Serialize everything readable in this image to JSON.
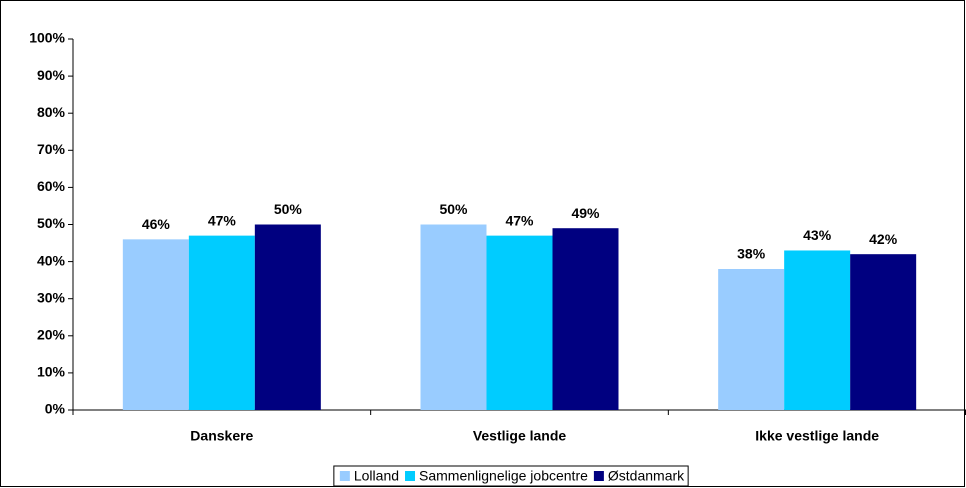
{
  "chart_data": {
    "type": "bar",
    "categories": [
      "Danskere",
      "Vestlige lande",
      "Ikke vestlige lande"
    ],
    "series": [
      {
        "name": "Lolland",
        "color": "#99ccff",
        "values": [
          46,
          50,
          38
        ],
        "value_labels": [
          "46%",
          "50%",
          "38%"
        ]
      },
      {
        "name": "Sammenlignelige jobcentre",
        "color": "#00ccff",
        "values": [
          47,
          47,
          43
        ],
        "value_labels": [
          "47%",
          "47%",
          "43%"
        ]
      },
      {
        "name": "Østdanmark",
        "color": "#000080",
        "values": [
          50,
          49,
          42
        ],
        "value_labels": [
          "50%",
          "49%",
          "42%"
        ]
      }
    ],
    "ylim": [
      0,
      100
    ],
    "yticks": [
      {
        "value": 0,
        "label": "0%"
      },
      {
        "value": 10,
        "label": "10%"
      },
      {
        "value": 20,
        "label": "20%"
      },
      {
        "value": 30,
        "label": "30%"
      },
      {
        "value": 40,
        "label": "40%"
      },
      {
        "value": 50,
        "label": "50%"
      },
      {
        "value": 60,
        "label": "60%"
      },
      {
        "value": 70,
        "label": "70%"
      },
      {
        "value": 80,
        "label": "80%"
      },
      {
        "value": 90,
        "label": "90%"
      },
      {
        "value": 100,
        "label": "100%"
      }
    ],
    "legend": "bottom"
  }
}
